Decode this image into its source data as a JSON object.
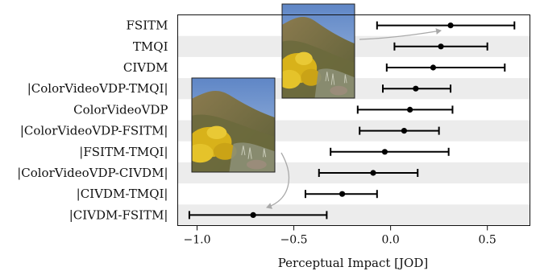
{
  "chart_data": {
    "type": "scatter",
    "subtype": "forest-plot with horizontal error bars",
    "xlabel": "Perceptual Impact [JOD]",
    "xlim": [
      -1.1,
      0.72
    ],
    "xticks": [
      -1.0,
      -0.5,
      0.0,
      0.5
    ],
    "xtick_labels": [
      "−1.0",
      "−0.5",
      "0.0",
      "0.5"
    ],
    "grid": false,
    "row_banding": true,
    "colors": {
      "marker": "#000000",
      "band": "#ececec",
      "arrow": "#a9a9a9"
    },
    "rows": [
      {
        "label": "FSITM",
        "value": 0.31,
        "ci": [
          -0.07,
          0.64
        ]
      },
      {
        "label": "TMQI",
        "value": 0.26,
        "ci": [
          0.02,
          0.5
        ]
      },
      {
        "label": "CIVDM",
        "value": 0.22,
        "ci": [
          -0.02,
          0.59
        ]
      },
      {
        "label": "|ColorVideoVDP-TMQI|",
        "value": 0.13,
        "ci": [
          -0.04,
          0.31
        ]
      },
      {
        "label": "ColorVideoVDP",
        "value": 0.1,
        "ci": [
          -0.17,
          0.32
        ]
      },
      {
        "label": "|ColorVideoVDP-FSITM|",
        "value": 0.07,
        "ci": [
          -0.16,
          0.25
        ]
      },
      {
        "label": "|FSITM-TMQI|",
        "value": -0.03,
        "ci": [
          -0.31,
          0.3
        ]
      },
      {
        "label": "|ColorVideoVDP-CIVDM|",
        "value": -0.09,
        "ci": [
          -0.37,
          0.14
        ]
      },
      {
        "label": "|CIVDM-TMQI|",
        "value": -0.25,
        "ci": [
          -0.44,
          -0.07
        ]
      },
      {
        "label": "|CIVDM-FSITM|",
        "value": -0.71,
        "ci": [
          -1.04,
          -0.33
        ]
      }
    ],
    "insets": [
      {
        "name": "upper-right-example-image",
        "subject": "coastal hillside with yellow gorse and blue sky"
      },
      {
        "name": "lower-left-example-image",
        "subject": "coastal hillside with yellow gorse and blue sky"
      }
    ]
  }
}
